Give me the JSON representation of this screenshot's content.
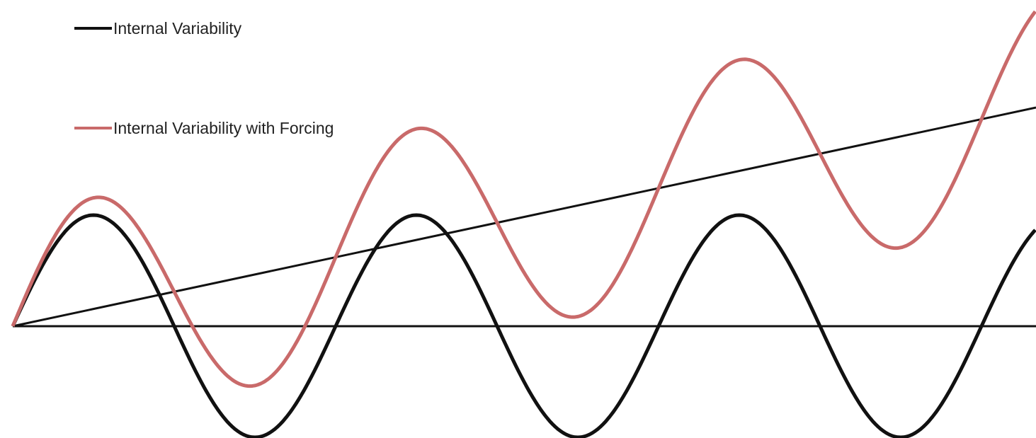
{
  "legend": [
    {
      "label": "Internal Variability"
    },
    {
      "label": "Internal Variability with Forcing"
    }
  ]
}
